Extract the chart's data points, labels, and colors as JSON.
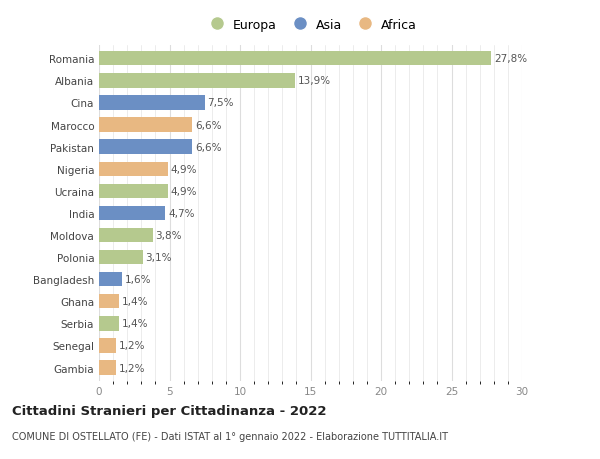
{
  "countries": [
    "Romania",
    "Albania",
    "Cina",
    "Marocco",
    "Pakistan",
    "Nigeria",
    "Ucraina",
    "India",
    "Moldova",
    "Polonia",
    "Bangladesh",
    "Ghana",
    "Serbia",
    "Senegal",
    "Gambia"
  ],
  "values": [
    27.8,
    13.9,
    7.5,
    6.6,
    6.6,
    4.9,
    4.9,
    4.7,
    3.8,
    3.1,
    1.6,
    1.4,
    1.4,
    1.2,
    1.2
  ],
  "labels": [
    "27,8%",
    "13,9%",
    "7,5%",
    "6,6%",
    "6,6%",
    "4,9%",
    "4,9%",
    "4,7%",
    "3,8%",
    "3,1%",
    "1,6%",
    "1,4%",
    "1,4%",
    "1,2%",
    "1,2%"
  ],
  "continents": [
    "Europa",
    "Europa",
    "Asia",
    "Africa",
    "Asia",
    "Africa",
    "Europa",
    "Asia",
    "Europa",
    "Europa",
    "Asia",
    "Africa",
    "Europa",
    "Africa",
    "Africa"
  ],
  "colors": {
    "Europa": "#b5c98e",
    "Asia": "#6b8fc4",
    "Africa": "#e8b882"
  },
  "legend_order": [
    "Europa",
    "Asia",
    "Africa"
  ],
  "title": "Cittadini Stranieri per Cittadinanza - 2022",
  "subtitle": "COMUNE DI OSTELLATO (FE) - Dati ISTAT al 1° gennaio 2022 - Elaborazione TUTTITALIA.IT",
  "xlim": [
    0,
    30
  ],
  "xticks": [
    0,
    5,
    10,
    15,
    20,
    25,
    30
  ],
  "bg_color": "#ffffff",
  "grid_color": "#dddddd",
  "bar_height": 0.65,
  "label_fontsize": 7.5,
  "tick_fontsize": 7.5,
  "title_fontsize": 9.5,
  "subtitle_fontsize": 7.0
}
